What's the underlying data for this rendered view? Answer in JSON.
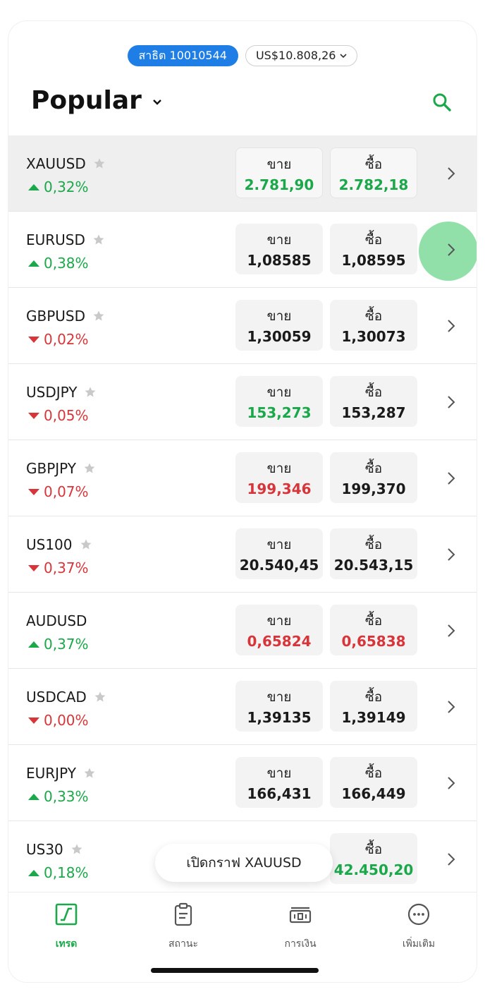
{
  "account": {
    "badge": "สาธิต 10010544",
    "balance": "US$10.808,26"
  },
  "header": {
    "title": "Popular"
  },
  "instruments": [
    {
      "symbol": "XAUUSD",
      "star": true,
      "dir": "up",
      "change": "0,32%",
      "sell_label": "ขาย",
      "sell": "2.781,90",
      "sell_color": "green",
      "buy_label": "ซื้อ",
      "buy": "2.782,18",
      "buy_color": "green"
    },
    {
      "symbol": "EURUSD",
      "star": true,
      "dir": "up",
      "change": "0,38%",
      "sell_label": "ขาย",
      "sell": "1,08585",
      "sell_color": "black",
      "buy_label": "ซื้อ",
      "buy": "1,08595",
      "buy_color": "black"
    },
    {
      "symbol": "GBPUSD",
      "star": true,
      "dir": "down",
      "change": "0,02%",
      "sell_label": "ขาย",
      "sell": "1,30059",
      "sell_color": "black",
      "buy_label": "ซื้อ",
      "buy": "1,30073",
      "buy_color": "black"
    },
    {
      "symbol": "USDJPY",
      "star": true,
      "dir": "down",
      "change": "0,05%",
      "sell_label": "ขาย",
      "sell": "153,273",
      "sell_color": "green",
      "buy_label": "ซื้อ",
      "buy": "153,287",
      "buy_color": "black"
    },
    {
      "symbol": "GBPJPY",
      "star": true,
      "dir": "down",
      "change": "0,07%",
      "sell_label": "ขาย",
      "sell": "199,346",
      "sell_color": "red",
      "buy_label": "ซื้อ",
      "buy": "199,370",
      "buy_color": "black"
    },
    {
      "symbol": "US100",
      "star": true,
      "dir": "down",
      "change": "0,37%",
      "sell_label": "ขาย",
      "sell": "20.540,45",
      "sell_color": "black",
      "buy_label": "ซื้อ",
      "buy": "20.543,15",
      "buy_color": "black"
    },
    {
      "symbol": "AUDUSD",
      "star": false,
      "dir": "up",
      "change": "0,37%",
      "sell_label": "ขาย",
      "sell": "0,65824",
      "sell_color": "red",
      "buy_label": "ซื้อ",
      "buy": "0,65838",
      "buy_color": "red"
    },
    {
      "symbol": "USDCAD",
      "star": true,
      "dir": "down",
      "change": "0,00%",
      "sell_label": "ขาย",
      "sell": "1,39135",
      "sell_color": "black",
      "buy_label": "ซื้อ",
      "buy": "1,39149",
      "buy_color": "black"
    },
    {
      "symbol": "EURJPY",
      "star": true,
      "dir": "up",
      "change": "0,33%",
      "sell_label": "ขาย",
      "sell": "166,431",
      "sell_color": "black",
      "buy_label": "ซื้อ",
      "buy": "166,449",
      "buy_color": "black"
    },
    {
      "symbol": "US30",
      "star": true,
      "dir": "up",
      "change": "0,18%",
      "sell_label": "",
      "sell": "",
      "sell_color": "black",
      "buy_label": "ซื้อ",
      "buy": "42.450,20",
      "buy_color": "green"
    }
  ],
  "toast": "เปิดกราฟ XAUUSD",
  "tabs": [
    {
      "label": "เทรด",
      "icon": "trade-chart-icon",
      "active": true
    },
    {
      "label": "สถานะ",
      "icon": "clipboard-icon",
      "active": false
    },
    {
      "label": "การเงิน",
      "icon": "banknote-icon",
      "active": false
    },
    {
      "label": "เพิ่มเติม",
      "icon": "more-dots-icon",
      "active": false
    }
  ],
  "colors": {
    "accent": "#1aa84a",
    "down": "#d8353a",
    "badge": "#1e7ee6"
  }
}
